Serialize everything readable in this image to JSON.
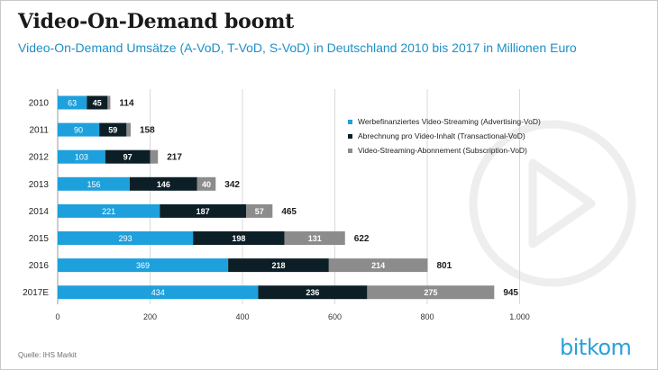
{
  "header": {
    "title": "Video-On-Demand boomt",
    "subtitle": "Video-On-Demand Umsätze (A-VoD, T-VoD, S-VoD) in Deutschland 2010 bis 2017 in Millionen Euro"
  },
  "footer": {
    "source": "Quelle: IHS Markit",
    "brand": "bitkom"
  },
  "watermark": {
    "icon": "play-circle-icon"
  },
  "colors": {
    "avod": "#1ea0dc",
    "tvod": "#0d1f26",
    "svod": "#8c8c8c",
    "brand": "#2ba1d9"
  },
  "chart_data": {
    "type": "bar",
    "orientation": "horizontal",
    "stacked": true,
    "categories": [
      "2010",
      "2011",
      "2012",
      "2013",
      "2014",
      "2015",
      "2016",
      "2017E"
    ],
    "series": [
      {
        "name": "Werbefinanziertes Video-Streaming (Advertising-VoD)",
        "values": [
          63,
          90,
          103,
          156,
          221,
          293,
          369,
          434
        ],
        "color": "#1ea0dc"
      },
      {
        "name": "Abrechnung pro Video-Inhalt (Transactional-VoD)",
        "values": [
          45,
          59,
          97,
          146,
          187,
          198,
          218,
          236
        ],
        "color": "#0d1f26"
      },
      {
        "name": "Video-Streaming-Abonnement (Subscription-VoD)",
        "values": [
          6,
          9,
          17,
          40,
          57,
          131,
          214,
          275
        ],
        "color": "#8c8c8c"
      }
    ],
    "totals": [
      114,
      158,
      217,
      342,
      465,
      622,
      801,
      945
    ],
    "xlim": [
      0,
      1000
    ],
    "xticks": [
      0,
      200,
      400,
      600,
      800,
      1000
    ],
    "xtick_labels": [
      "0",
      "200",
      "400",
      "600",
      "800",
      "1.000"
    ],
    "grid": "vertical",
    "legend_position": "right"
  }
}
